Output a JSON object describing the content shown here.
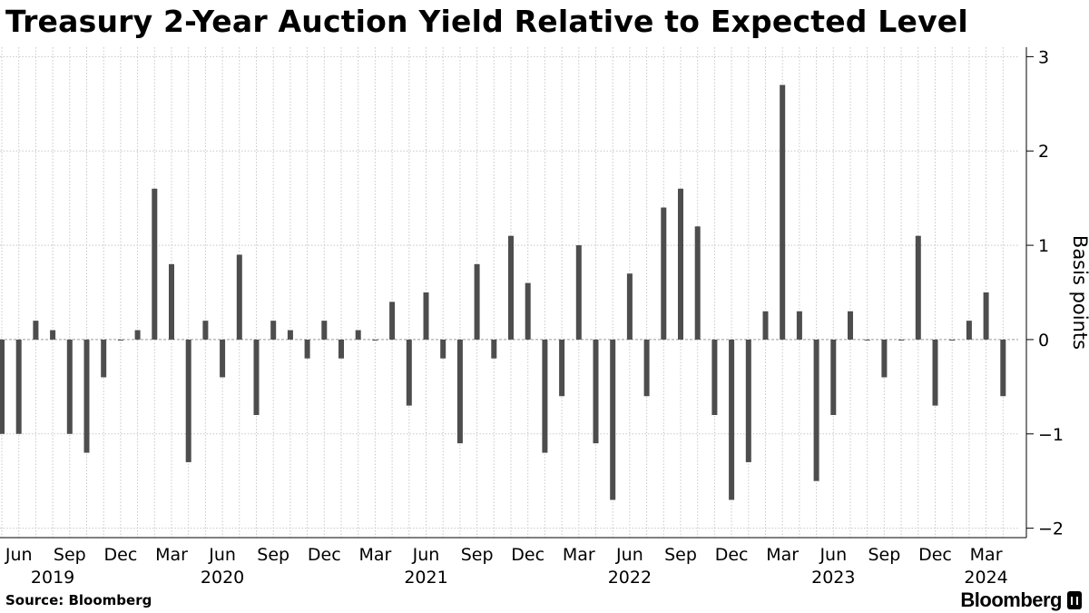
{
  "chart_data": {
    "type": "bar",
    "title": "Treasury 2-Year Auction Yield Relative to Expected Level",
    "ylabel": "Basis points",
    "ylim": [
      -2.1,
      3.1
    ],
    "y_ticks": [
      3,
      2,
      1,
      0,
      -1,
      -2
    ],
    "grid": true,
    "color": "#4d4d4d",
    "x_start": "2019-05",
    "categories": [
      "2019-05",
      "2019-06",
      "2019-07",
      "2019-08",
      "2019-09",
      "2019-10",
      "2019-11",
      "2019-12",
      "2020-01",
      "2020-02",
      "2020-03",
      "2020-04",
      "2020-05",
      "2020-06",
      "2020-07",
      "2020-08",
      "2020-09",
      "2020-10",
      "2020-11",
      "2020-12",
      "2021-01",
      "2021-02",
      "2021-03",
      "2021-04",
      "2021-05",
      "2021-06",
      "2021-07",
      "2021-08",
      "2021-09",
      "2021-10",
      "2021-11",
      "2021-12",
      "2022-01",
      "2022-02",
      "2022-03",
      "2022-04",
      "2022-05",
      "2022-06",
      "2022-07",
      "2022-08",
      "2022-09",
      "2022-10",
      "2022-11",
      "2022-12",
      "2023-01",
      "2023-02",
      "2023-03",
      "2023-04",
      "2023-05",
      "2023-06",
      "2023-07",
      "2023-08",
      "2023-09",
      "2023-10",
      "2023-11",
      "2023-12",
      "2024-01",
      "2024-02",
      "2024-03",
      "2024-04"
    ],
    "values": [
      -1.0,
      -1.0,
      0.2,
      0.1,
      -1.0,
      -1.2,
      -0.4,
      0.0,
      0.1,
      1.6,
      0.8,
      -1.3,
      0.2,
      -0.4,
      0.9,
      -0.8,
      0.2,
      0.1,
      -0.2,
      0.2,
      -0.2,
      0.1,
      0.0,
      0.4,
      -0.7,
      0.5,
      -0.2,
      -1.1,
      0.8,
      -0.2,
      1.1,
      0.6,
      -1.2,
      -0.6,
      1.0,
      -1.1,
      -1.7,
      0.7,
      -0.6,
      1.4,
      1.6,
      1.2,
      -0.8,
      -1.7,
      -1.3,
      0.3,
      2.7,
      0.3,
      -1.5,
      -0.8,
      0.3,
      0.0,
      -0.4,
      0.0,
      1.1,
      -0.7,
      0.0,
      0.2,
      0.5,
      -0.6
    ],
    "month_labels": [
      {
        "index": 1,
        "text": "Jun"
      },
      {
        "index": 4,
        "text": "Sep"
      },
      {
        "index": 7,
        "text": "Dec"
      },
      {
        "index": 10,
        "text": "Mar"
      },
      {
        "index": 13,
        "text": "Jun"
      },
      {
        "index": 16,
        "text": "Sep"
      },
      {
        "index": 19,
        "text": "Dec"
      },
      {
        "index": 22,
        "text": "Mar"
      },
      {
        "index": 25,
        "text": "Jun"
      },
      {
        "index": 28,
        "text": "Sep"
      },
      {
        "index": 31,
        "text": "Dec"
      },
      {
        "index": 34,
        "text": "Mar"
      },
      {
        "index": 37,
        "text": "Jun"
      },
      {
        "index": 40,
        "text": "Sep"
      },
      {
        "index": 43,
        "text": "Dec"
      },
      {
        "index": 46,
        "text": "Mar"
      },
      {
        "index": 49,
        "text": "Jun"
      },
      {
        "index": 52,
        "text": "Sep"
      },
      {
        "index": 55,
        "text": "Dec"
      },
      {
        "index": 58,
        "text": "Mar"
      }
    ],
    "year_labels": [
      {
        "index": 3,
        "text": "2019"
      },
      {
        "index": 13,
        "text": "2020"
      },
      {
        "index": 25,
        "text": "2021"
      },
      {
        "index": 37,
        "text": "2022"
      },
      {
        "index": 49,
        "text": "2023"
      },
      {
        "index": 58,
        "text": "2024"
      }
    ]
  },
  "footer": {
    "source": "Source: Bloomberg",
    "brand": "Bloomberg"
  }
}
